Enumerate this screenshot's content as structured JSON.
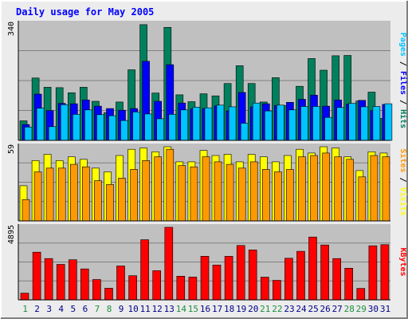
{
  "chart_data": {
    "type": "bar",
    "title": "Daily usage for May 2005",
    "categories": [
      "1",
      "2",
      "3",
      "4",
      "5",
      "6",
      "7",
      "8",
      "9",
      "10",
      "11",
      "12",
      "13",
      "14",
      "15",
      "16",
      "17",
      "18",
      "19",
      "20",
      "21",
      "22",
      "23",
      "24",
      "25",
      "26",
      "27",
      "28",
      "29",
      "30",
      "31"
    ],
    "weekend_days": [
      "1",
      "7",
      "8",
      "14",
      "15",
      "21",
      "22",
      "28",
      "29"
    ],
    "panels": [
      {
        "id": "hits",
        "ymax": 340,
        "ymax_label": "340",
        "label_words": [
          "Pages",
          "Files",
          "Hits"
        ],
        "series": [
          {
            "name": "Hits",
            "color": "#00805c",
            "values": [
              57,
              182,
              155,
              154,
              139,
              155,
              114,
              81,
              112,
              206,
              338,
              138,
              330,
              133,
              113,
              136,
              130,
              166,
              218,
              166,
              112,
              183,
              102,
              158,
              239,
              205,
              247,
              248,
              115,
              141,
              64
            ]
          },
          {
            "name": "Files",
            "color": "#0000ff",
            "values": [
              46,
              135,
              87,
              108,
              107,
              118,
              100,
              93,
              88,
              93,
              231,
              114,
              221,
              109,
              92,
              93,
              101,
              86,
              140,
              98,
              107,
              102,
              111,
              120,
              132,
              100,
              118,
              106,
              117,
              87,
              105
            ]
          },
          {
            "name": "Pages",
            "color": "#00c4ff",
            "values": [
              39,
              94,
              40,
              104,
              76,
              89,
              75,
              72,
              58,
              83,
              77,
              63,
              76,
              89,
              97,
              95,
              103,
              98,
              50,
              109,
              86,
              103,
              89,
              99,
              99,
              67,
              96,
              108,
              98,
              99,
              107
            ]
          }
        ]
      },
      {
        "id": "visits",
        "ymax": 59,
        "ymax_label": "59",
        "label_words": [
          "Sites",
          "Visits"
        ],
        "series": [
          {
            "name": "Visits",
            "color": "#ffff00",
            "values": [
              28,
              48,
              53,
              48,
              51,
              49,
              42,
              39,
              52,
              57,
              58,
              55,
              59,
              47,
              47,
              56,
              52,
              53,
              47,
              53,
              51,
              47,
              52,
              57,
              54,
              59,
              58,
              51,
              40,
              55,
              54
            ]
          },
          {
            "name": "Sites",
            "color": "#ff9900",
            "values": [
              17,
              39,
              42,
              42,
              45,
              43,
              32,
              29,
              34,
              41,
              48,
              51,
              57,
              44,
              43,
              51,
              47,
              45,
              42,
              47,
              41,
              39,
              41,
              51,
              52,
              54,
              51,
              49,
              35,
              52,
              51
            ]
          }
        ]
      },
      {
        "id": "kbytes",
        "ymax": 4895,
        "ymax_label": "4895",
        "label_words": [
          "KBytes"
        ],
        "series": [
          {
            "name": "KBytes",
            "color": "#ff0000",
            "values": [
              450,
              3219,
              2786,
              2394,
              2708,
              2085,
              1373,
              784,
              2286,
              1631,
              4058,
              1968,
              4895,
              1597,
              1540,
              2940,
              2351,
              2938,
              3669,
              3368,
              1535,
              1319,
              2807,
              3276,
              4240,
              3699,
              2786,
              2135,
              773,
              3646,
              3724
            ]
          }
        ]
      }
    ],
    "colors": {
      "background": "#ececec",
      "frame_light": "#ffffff",
      "frame_dark": "#808080",
      "panel_bg": "#c0c0c0",
      "panel_rule": "#000000",
      "title": "#0000ff",
      "weekday_label": "#00008b",
      "weekend_label": "#1f8f40",
      "bar_outline": "#000000",
      "divider": "#808080",
      "ymax_text": "#000000"
    }
  }
}
